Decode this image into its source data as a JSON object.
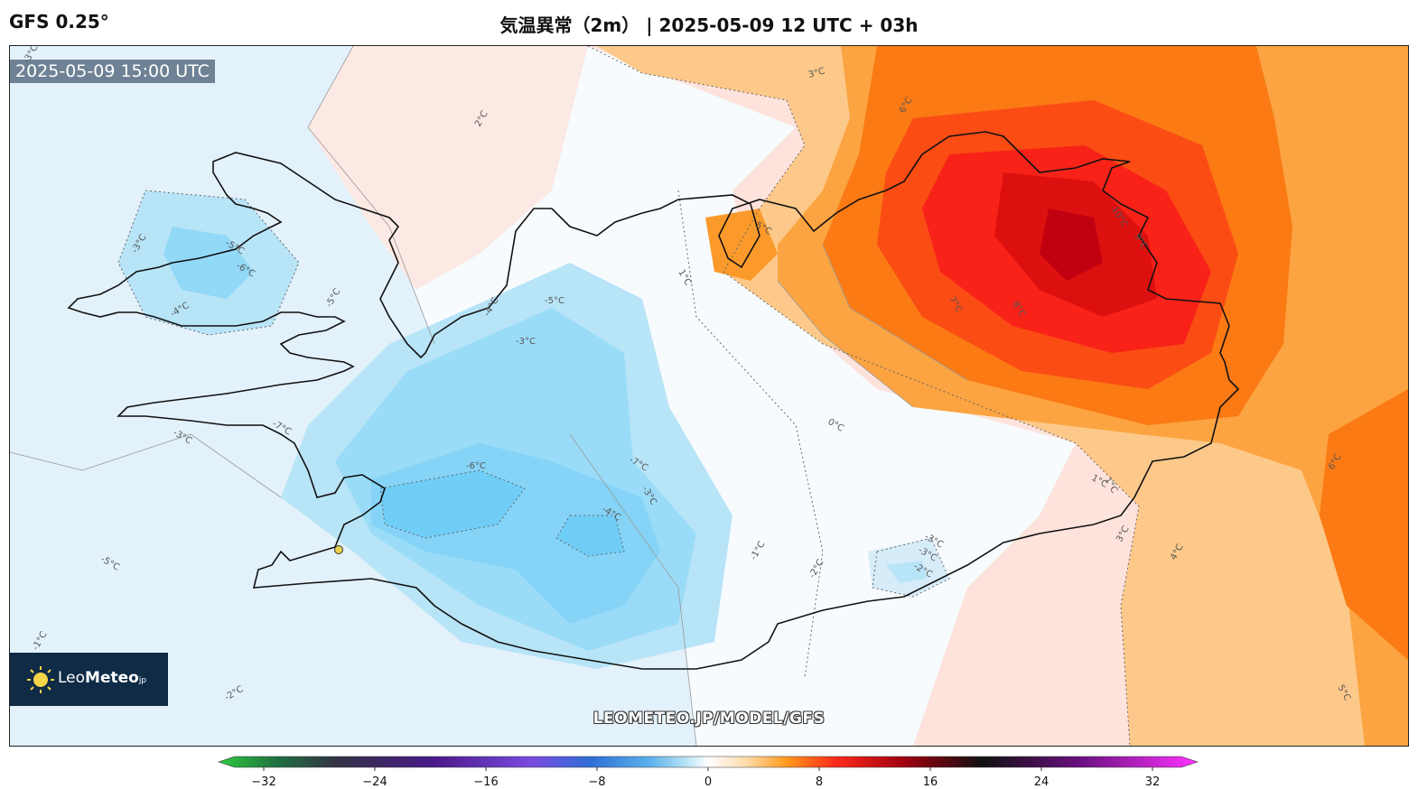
{
  "header": {
    "model": "GFS 0.25°",
    "title": "気温異常（2m） | 2025-05-09 12 UTC + 03h"
  },
  "map": {
    "valid_time": "2025-05-09 15:00 UTC",
    "watermark": "LEOMETEO.JP/MODEL/GFS",
    "contour_labels": [
      "-3°C",
      "-2°C",
      "2°C",
      "3°C",
      "-5°C",
      "-6°C",
      "-4°C",
      "-3°C",
      "-5°C",
      "-5°C",
      "-3°C",
      "-4°C",
      "-3°C",
      "-7°C",
      "-5°C",
      "-6°C",
      "-7°C",
      "-3°C",
      "-4°C",
      "-1°C",
      "-1°C",
      "-2°C",
      "-3°C",
      "-3°C",
      "-2°C",
      "1°C",
      "0°C",
      "5°C",
      "1°C",
      "6°C",
      "10°C",
      "9°C",
      "7°C",
      "8°C",
      "1°C",
      "3°C",
      "4°C",
      "6°C",
      "5°C"
    ]
  },
  "logo": {
    "brand_light": "Leo",
    "brand_bold": "Meteo",
    "suffix": "jp"
  },
  "colorbar": {
    "min": -32,
    "max": 32,
    "ticks": [
      "−32",
      "−24",
      "−16",
      "−8",
      "0",
      "8",
      "16",
      "24",
      "32"
    ],
    "colors": {
      "green": "#2ecc40",
      "purple": "#6a1fa8",
      "blue": "#2f6fd6",
      "lightblue": "#8fd4f5",
      "white": "#ffffff",
      "orange": "#ffa500",
      "red": "#ff2a1a",
      "darkred": "#a00010",
      "black": "#111111",
      "magenta": "#ff33ff"
    }
  }
}
